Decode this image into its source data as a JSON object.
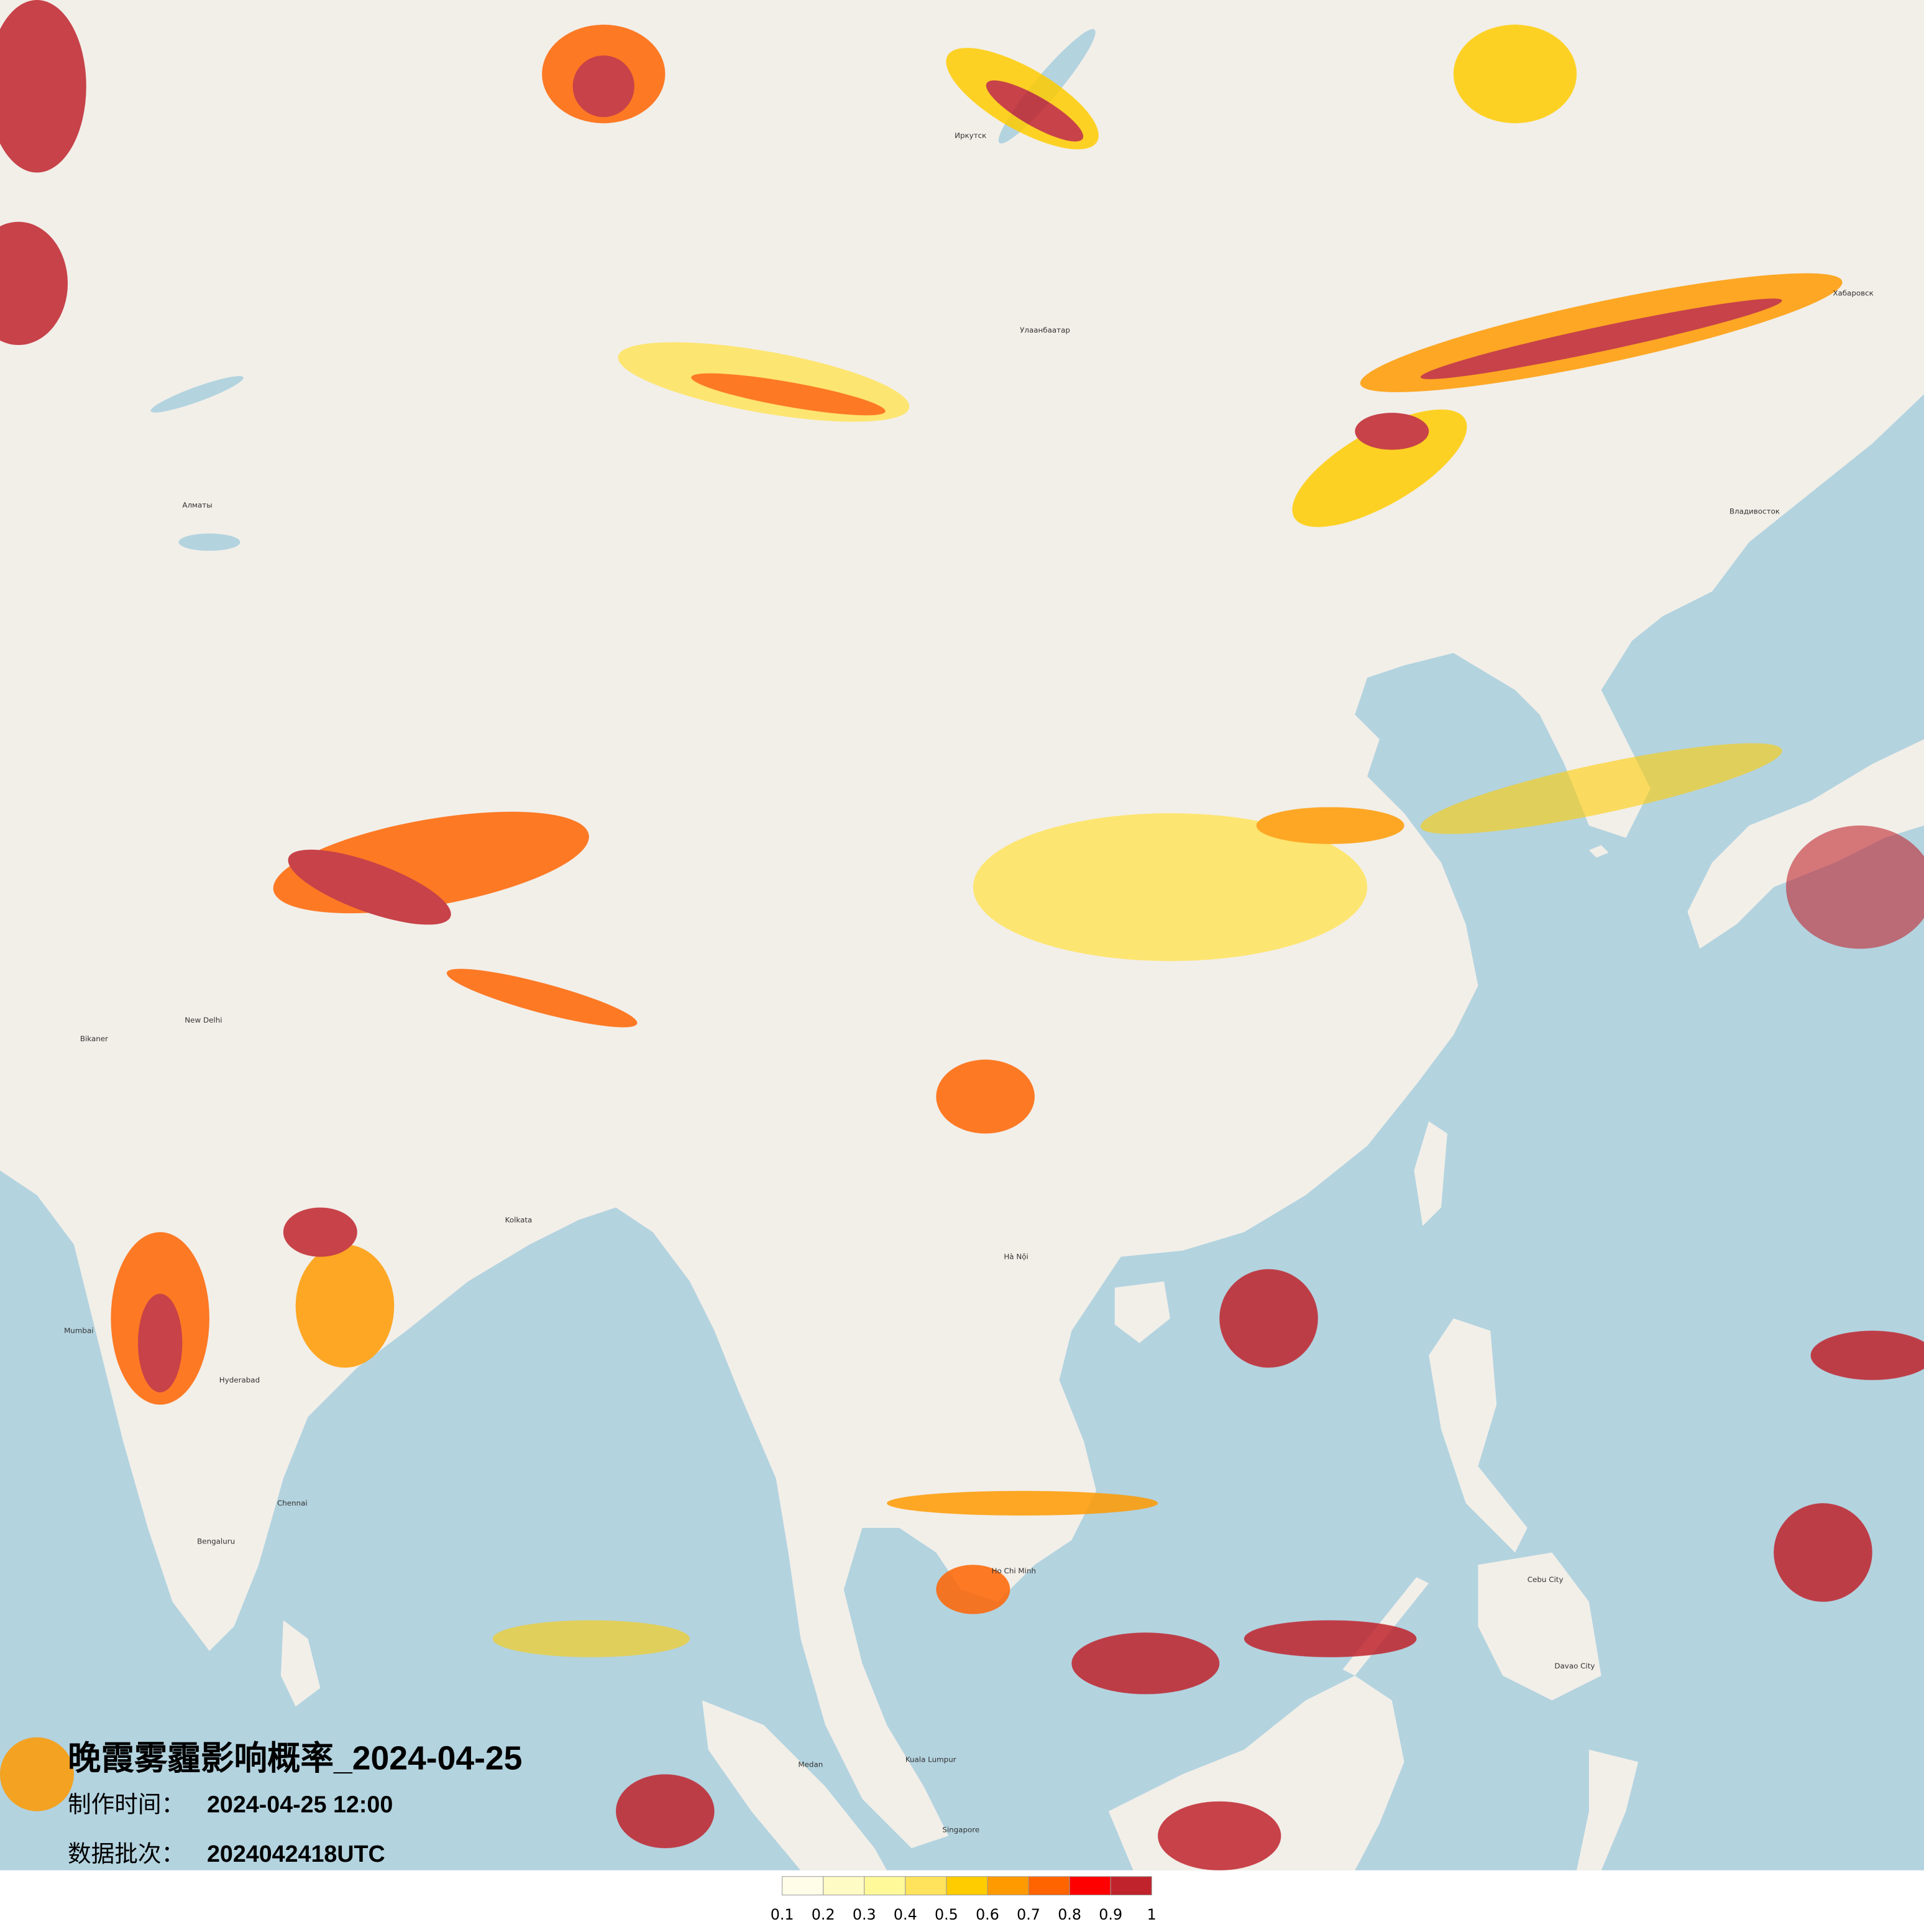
{
  "overlay": {
    "title": "晚霞雾霾影响概率_2024-04-25",
    "made_label": "制作时间：",
    "made_value": "2024-04-25 12:00",
    "batch_label": "数据批次：",
    "batch_value": "2024042418UTC"
  },
  "legend": {
    "ticks": [
      "0.1",
      "0.2",
      "0.3",
      "0.4",
      "0.5",
      "0.6",
      "0.7",
      "0.8",
      "0.9",
      "1"
    ],
    "colors": [
      "#fffde8",
      "#fffbc4",
      "#fff99a",
      "#ffe35c",
      "#ffcc00",
      "#ff9a00",
      "#ff6400",
      "#ff0000",
      "#c0232c"
    ]
  },
  "map": {
    "land_color": "#f2efe9",
    "sea_color": "#b3d3df",
    "cities": [
      "Улаанбаатар",
      "Иркутск",
      "Алматы",
      "Bikaner",
      "New Delhi",
      "Kolkata",
      "Ho Chi Minh",
      "Hà Nội",
      "Cebu City",
      "Singapore",
      "Kuala Lumpur",
      "Medan",
      "Davao City",
      "Hyderabad",
      "Chennai",
      "Bengaluru",
      "Mumbai",
      "Владивосток",
      "Хабаровск"
    ]
  }
}
